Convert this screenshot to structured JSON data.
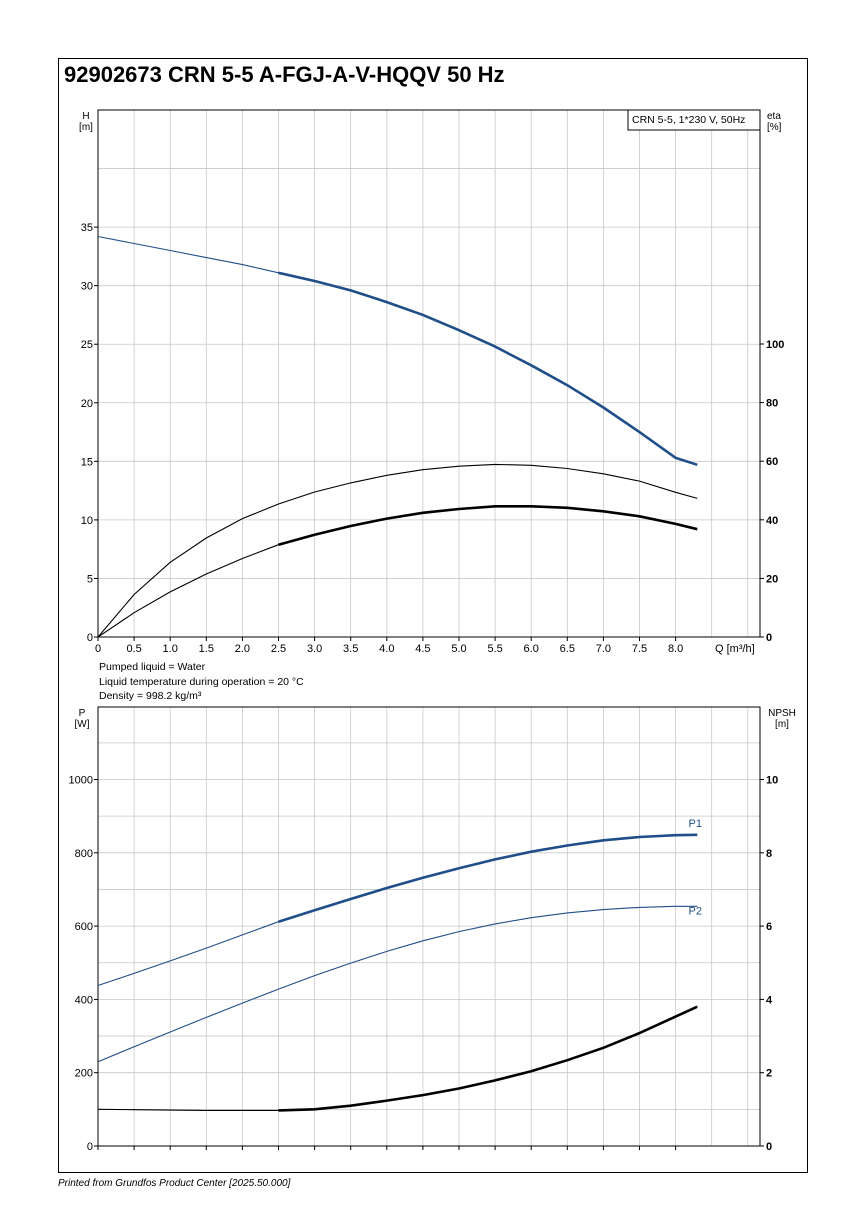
{
  "title": "92902673 CRN 5-5 A-FGJ-A-V-HQQV 50 Hz",
  "footer": "Printed from Grundfos Product Center [2025.50.000]",
  "notes": {
    "liquid": "Pumped liquid = Water",
    "temperature": "Liquid temperature during operation = 20 °C",
    "density": "Density = 998.2 kg/m³"
  },
  "colors": {
    "pump_curve": "#1f4e89",
    "efficiency_curve": "#000000",
    "npsh_curve": "#000000",
    "grid": "#c8c8c8"
  },
  "chart_data": [
    {
      "type": "line",
      "legend": "CRN 5-5, 1*230 V, 50Hz",
      "legend_position": "top-right",
      "grid": true,
      "xlabel": "Q [m³/h]",
      "xlim": [
        0,
        8.5
      ],
      "xticks": [
        "0",
        "0.5",
        "1.0",
        "1.5",
        "2.0",
        "2.5",
        "3.0",
        "3.5",
        "4.0",
        "4.5",
        "5.0",
        "5.5",
        "6.0",
        "6.5",
        "7.0",
        "7.5",
        "8.0"
      ],
      "ylabel_left": {
        "name": "H",
        "unit": "[m]"
      },
      "ylim_left": [
        0,
        35
      ],
      "yticks_left": [
        "0",
        "5",
        "10",
        "15",
        "20",
        "25",
        "30",
        "35"
      ],
      "ylabel_right": {
        "name": "eta",
        "unit": "[%]"
      },
      "ylim_right": [
        0,
        100
      ],
      "yticks_right": [
        "0",
        "20",
        "40",
        "60",
        "80",
        "100"
      ],
      "series": [
        {
          "axis": "left",
          "color": "#1f4e89",
          "thick_from": 2.5,
          "points": [
            [
              0,
              34.2
            ],
            [
              0.5,
              33.6
            ],
            [
              1.0,
              33.0
            ],
            [
              1.5,
              32.4
            ],
            [
              2.0,
              31.8
            ],
            [
              2.5,
              31.1
            ],
            [
              3.0,
              30.4
            ],
            [
              3.5,
              29.6
            ],
            [
              4.0,
              28.6
            ],
            [
              4.5,
              27.5
            ],
            [
              5.0,
              26.2
            ],
            [
              5.5,
              24.8
            ],
            [
              6.0,
              23.2
            ],
            [
              6.5,
              21.5
            ],
            [
              7.0,
              19.6
            ],
            [
              7.5,
              17.5
            ],
            [
              8.0,
              15.3
            ],
            [
              8.3,
              14.7
            ]
          ]
        },
        {
          "axis": "right",
          "color": "#000000",
          "thick_from": 99,
          "points": [
            [
              0,
              0
            ],
            [
              0.5,
              14.5
            ],
            [
              1.0,
              25.5
            ],
            [
              1.5,
              33.8
            ],
            [
              2.0,
              40.4
            ],
            [
              2.5,
              45.4
            ],
            [
              3.0,
              49.5
            ],
            [
              3.5,
              52.6
            ],
            [
              4.0,
              55.2
            ],
            [
              4.5,
              57.1
            ],
            [
              5.0,
              58.3
            ],
            [
              5.5,
              58.9
            ],
            [
              6.0,
              58.6
            ],
            [
              6.5,
              57.5
            ],
            [
              7.0,
              55.7
            ],
            [
              7.5,
              53.2
            ],
            [
              8.0,
              49.4
            ],
            [
              8.3,
              47.3
            ]
          ]
        },
        {
          "axis": "right",
          "color": "#000000",
          "thick_from": 2.5,
          "points": [
            [
              0,
              0
            ],
            [
              0.5,
              8.3
            ],
            [
              1.0,
              15.4
            ],
            [
              1.5,
              21.5
            ],
            [
              2.0,
              26.8
            ],
            [
              2.5,
              31.5
            ],
            [
              3.0,
              34.9
            ],
            [
              3.5,
              37.9
            ],
            [
              4.0,
              40.4
            ],
            [
              4.5,
              42.4
            ],
            [
              5.0,
              43.7
            ],
            [
              5.5,
              44.6
            ],
            [
              6.0,
              44.6
            ],
            [
              6.5,
              44.1
            ],
            [
              7.0,
              42.9
            ],
            [
              7.5,
              41.2
            ],
            [
              8.0,
              38.6
            ],
            [
              8.3,
              36.8
            ]
          ]
        }
      ]
    },
    {
      "type": "line",
      "grid": true,
      "xlim": [
        0,
        8.5
      ],
      "ylabel_left": {
        "name": "P",
        "unit": "[W]"
      },
      "ylim_left": [
        0,
        1100
      ],
      "yticks_left": [
        "0",
        "200",
        "400",
        "600",
        "800",
        "1000"
      ],
      "ylabel_right": {
        "name": "NPSH",
        "unit": "[m]"
      },
      "ylim_right": [
        0,
        11
      ],
      "yticks_right": [
        "0",
        "2",
        "4",
        "6",
        "8",
        "10"
      ],
      "series": [
        {
          "name": "P1",
          "axis": "left",
          "color": "#1f4e89",
          "thick_from": 2.5,
          "points": [
            [
              0,
              438
            ],
            [
              0.5,
              471
            ],
            [
              1.0,
              505
            ],
            [
              1.5,
              540
            ],
            [
              2.0,
              576
            ],
            [
              2.5,
              612
            ],
            [
              3.0,
              643
            ],
            [
              3.5,
              674
            ],
            [
              4.0,
              704
            ],
            [
              4.5,
              732
            ],
            [
              5.0,
              758
            ],
            [
              5.5,
              782
            ],
            [
              6.0,
              803
            ],
            [
              6.5,
              820
            ],
            [
              7.0,
              834
            ],
            [
              7.5,
              843
            ],
            [
              8.0,
              848
            ],
            [
              8.3,
              849
            ]
          ]
        },
        {
          "name": "P2",
          "axis": "left",
          "color": "#1f4e89",
          "thick_from": 99,
          "points": [
            [
              0,
              230
            ],
            [
              0.5,
              271
            ],
            [
              1.0,
              311
            ],
            [
              1.5,
              351
            ],
            [
              2.0,
              390
            ],
            [
              2.5,
              428
            ],
            [
              3.0,
              465
            ],
            [
              3.5,
              499
            ],
            [
              4.0,
              531
            ],
            [
              4.5,
              560
            ],
            [
              5.0,
              585
            ],
            [
              5.5,
              606
            ],
            [
              6.0,
              623
            ],
            [
              6.5,
              636
            ],
            [
              7.0,
              645
            ],
            [
              7.5,
              651
            ],
            [
              8.0,
              654
            ],
            [
              8.3,
              654
            ]
          ]
        },
        {
          "axis": "right",
          "color": "#000000",
          "thick_from": 2.5,
          "points": [
            [
              0,
              1.0
            ],
            [
              0.5,
              0.99
            ],
            [
              1.0,
              0.98
            ],
            [
              1.5,
              0.97
            ],
            [
              2.0,
              0.97
            ],
            [
              2.5,
              0.97
            ],
            [
              3.0,
              1.0
            ],
            [
              3.5,
              1.1
            ],
            [
              4.0,
              1.24
            ],
            [
              4.5,
              1.39
            ],
            [
              5.0,
              1.57
            ],
            [
              5.5,
              1.79
            ],
            [
              6.0,
              2.04
            ],
            [
              6.5,
              2.34
            ],
            [
              7.0,
              2.68
            ],
            [
              7.5,
              3.08
            ],
            [
              8.0,
              3.53
            ],
            [
              8.3,
              3.8
            ]
          ]
        }
      ]
    }
  ]
}
